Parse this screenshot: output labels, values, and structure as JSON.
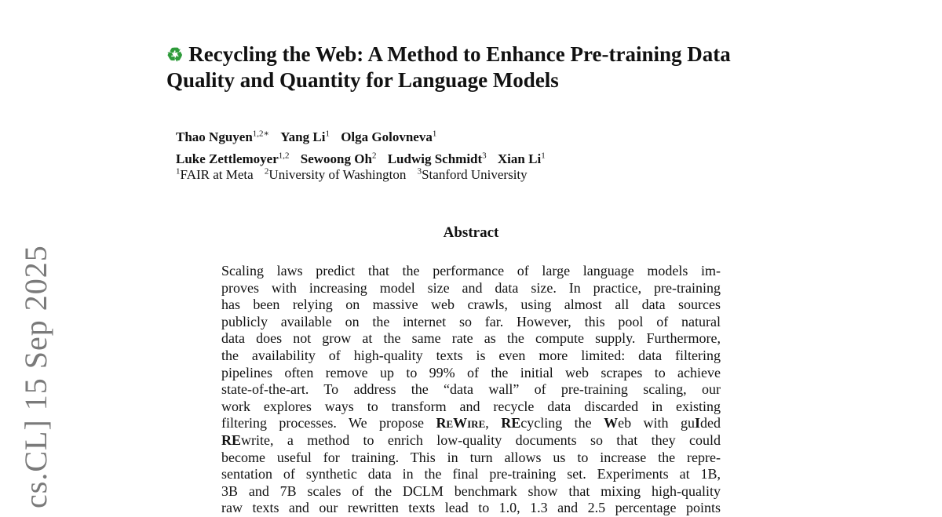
{
  "title": {
    "icon": "recycle-icon",
    "line1": "Recycling the Web: A Method to Enhance Pre-training Data",
    "line2": "Quality and Quantity for Language Models"
  },
  "authors": [
    {
      "name": "Thao Nguyen",
      "sup": "1,2∗"
    },
    {
      "name": "Yang Li",
      "sup": "1"
    },
    {
      "name": "Olga Golovneva",
      "sup": "1"
    },
    {
      "name": "Luke Zettlemoyer",
      "sup": "1,2"
    },
    {
      "name": "Sewoong Oh",
      "sup": "2"
    },
    {
      "name": "Ludwig Schmidt",
      "sup": "3"
    },
    {
      "name": "Xian Li",
      "sup": "1"
    }
  ],
  "affiliations": [
    {
      "sup": "1",
      "name": "FAIR at Meta"
    },
    {
      "sup": "2",
      "name": "University of Washington"
    },
    {
      "sup": "3",
      "name": "Stanford University"
    }
  ],
  "abstract": {
    "heading": "Abstract",
    "lines": [
      "Scaling laws predict that the performance of large language models im-",
      "proves with increasing model size and data size. In practice, pre-training",
      "has been relying on massive web crawls, using almost all data sources",
      "publicly available on the internet so far.  However, this pool of natural",
      "data does not grow at the same rate as the compute supply. Furthermore,",
      "the availability of high-quality texts is even more limited: data filtering",
      "pipelines often remove up to 99% of the initial web scrapes to achieve",
      "state-of-the-art.  To address the “data wall” of pre-training scaling, our",
      "work explores ways to transform and recycle data discarded in existing"
    ],
    "line10": {
      "a": "filtering processes. We propose ",
      "rewire": "ReWire",
      "b": ", ",
      "re1": "RE",
      "c": "cycling the ",
      "w": "W",
      "d": "eb with gu",
      "i": "I",
      "e": "ded"
    },
    "line11": {
      "re": "RE",
      "rest": "write, a method to enrich low-quality documents so that they could"
    },
    "lines_after": [
      "become useful for training.  This in turn allows us to increase the repre-",
      "sentation of synthetic data in the final pre-training set. Experiments at 1B,",
      "3B and 7B scales of the DCLM benchmark show that mixing high-quality",
      "raw texts and our rewritten texts lead to 1.0, 1.3 and 2.5 percentage points"
    ]
  },
  "arxiv_stamp": "cs.CL]  15 Sep 2025"
}
